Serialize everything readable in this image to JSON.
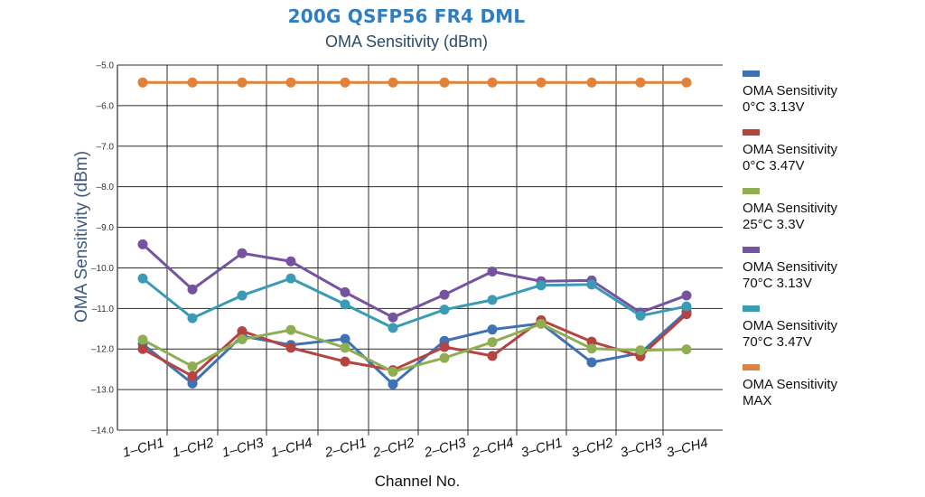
{
  "chart_data": {
    "type": "line",
    "title": "200G QSFP56 FR4 DML",
    "subtitle": "OMA Sensitivity (dBm)",
    "xlabel": "Channel No.",
    "ylabel": "OMA Sensitivity (dBm)",
    "ylim": [
      -14.0,
      -5.0
    ],
    "y_ticks": [
      "-5.0",
      "-6.0",
      "-7.0",
      "-8.0",
      "-9.0",
      "-10.0",
      "-11.0",
      "-12.0",
      "-13.0",
      "-14.0"
    ],
    "y_tick_values": [
      -5,
      -6,
      -7,
      -8,
      -9,
      -10,
      -11,
      -12,
      -13,
      -14
    ],
    "grid": true,
    "legend_position": "right",
    "categories": [
      "1-CH1",
      "1-CH2",
      "1-CH3",
      "1-CH4",
      "2-CH1",
      "2-CH2",
      "2-CH3",
      "2-CH4",
      "3-CH1",
      "3-CH2",
      "3-CH3",
      "3-CH4"
    ],
    "series": [
      {
        "name": "OMA Sensitivity 0°C 3.13V",
        "line1": "OMA Sensitivity",
        "line2": "0°C 3.13V",
        "color": "#3f72b3",
        "values": [
          -11.88,
          -12.85,
          -11.68,
          -11.9,
          -11.75,
          -12.87,
          -11.8,
          -11.52,
          -11.37,
          -12.33,
          -12.1,
          -11.08
        ]
      },
      {
        "name": "OMA Sensitivity 0°C 3.47V",
        "line1": "OMA Sensitivity",
        "line2": "0°C 3.47V",
        "color": "#b54341",
        "values": [
          -12.0,
          -12.67,
          -11.56,
          -11.97,
          -12.31,
          -12.52,
          -11.95,
          -12.17,
          -11.29,
          -11.82,
          -12.18,
          -11.14
        ]
      },
      {
        "name": "OMA Sensitivity 25°C 3.3V",
        "line1": "OMA Sensitivity",
        "line2": "25°C 3.3V",
        "color": "#8fae51",
        "values": [
          -11.77,
          -12.43,
          -11.76,
          -11.53,
          -11.97,
          -12.56,
          -12.22,
          -11.83,
          -11.38,
          -11.99,
          -12.03,
          -12.01
        ]
      },
      {
        "name": "OMA Sensitivity 70°C 3.13V",
        "line1": "OMA Sensitivity",
        "line2": "70°C 3.13V",
        "color": "#7653a0",
        "values": [
          -9.42,
          -10.53,
          -9.64,
          -9.84,
          -10.6,
          -11.22,
          -10.66,
          -10.09,
          -10.33,
          -10.31,
          -11.1,
          -10.68
        ]
      },
      {
        "name": "OMA Sensitivity 70°C 3.47V",
        "line1": "OMA Sensitivity",
        "line2": "70°C 3.47V",
        "color": "#3b9ab4",
        "values": [
          -10.26,
          -11.24,
          -10.68,
          -10.26,
          -10.9,
          -11.48,
          -11.03,
          -10.79,
          -10.43,
          -10.41,
          -11.18,
          -10.95
        ]
      },
      {
        "name": "OMA Sensitivity MAX",
        "line1": "OMA Sensitivity",
        "line2": "MAX",
        "color": "#e2823a",
        "values": [
          -5.43,
          -5.43,
          -5.43,
          -5.43,
          -5.43,
          -5.43,
          -5.43,
          -5.43,
          -5.43,
          -5.43,
          -5.43,
          -5.43
        ]
      }
    ]
  }
}
